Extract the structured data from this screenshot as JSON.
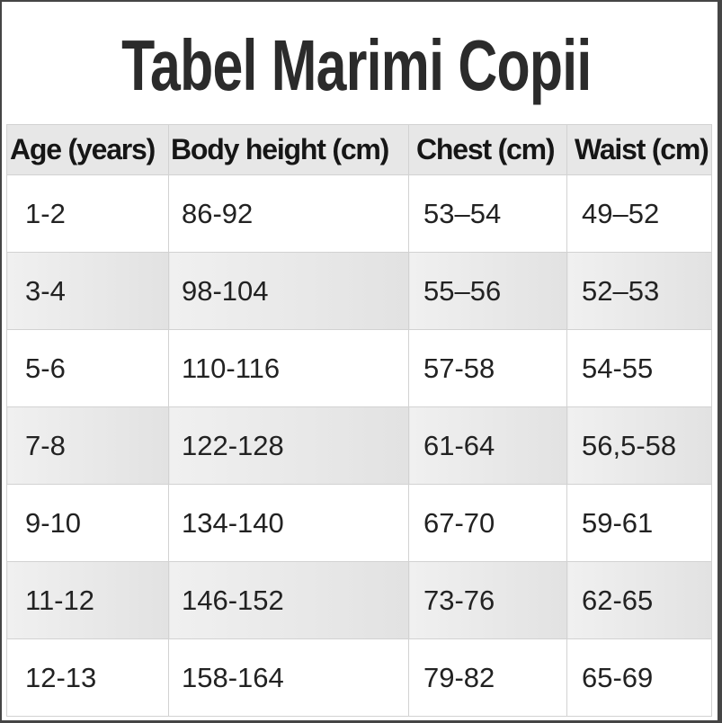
{
  "title": "Tabel Marimi Copii",
  "chart_data": {
    "type": "table",
    "title": "Tabel Marimi Copii",
    "columns": [
      "Age (years)",
      "Body height (cm)",
      "Chest (cm)",
      "Waist (cm)"
    ],
    "rows": [
      [
        "1-2",
        "86-92",
        "53–54",
        "49–52"
      ],
      [
        "3-4",
        "98-104",
        "55–56",
        "52–53"
      ],
      [
        "5-6",
        "110-116",
        "57-58",
        "54-55"
      ],
      [
        "7-8",
        "122-128",
        "61-64",
        "56,5-58"
      ],
      [
        "9-10",
        "134-140",
        "67-70",
        "59-61"
      ],
      [
        "11-12",
        "146-152",
        "73-76",
        "62-65"
      ],
      [
        "12-13",
        "158-164",
        "79-82",
        "65-69"
      ]
    ],
    "layout": {
      "header_position": "top",
      "striped_rows": "even rows shaded gray",
      "grid": "on"
    }
  },
  "colors": {
    "header_bg": "#e7e7e7",
    "stripe_bg": "#e8e8e8",
    "row_bg": "#ffffff",
    "cell_border": "#d2d2d2",
    "text": "#222222",
    "title_text": "#2b2b2b",
    "frame_border": "#454545"
  }
}
